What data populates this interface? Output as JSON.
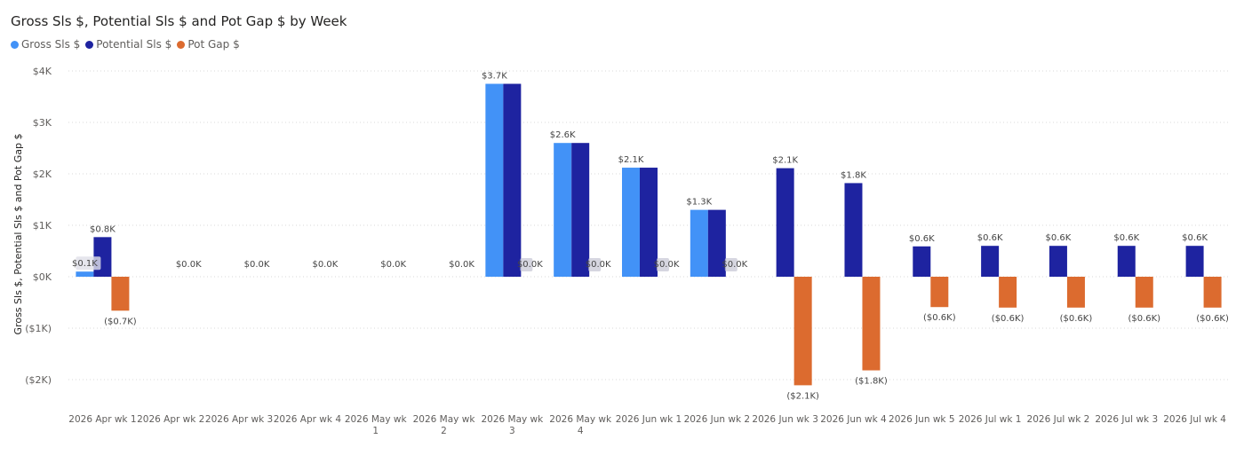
{
  "chart_data": {
    "type": "bar",
    "title": "Gross Sls $, Potential Sls $ and Pot Gap $ by Week",
    "xlabel": "",
    "ylabel": "Gross Sls $, Potential Sls $ and Pot Gap $",
    "ylim": [
      -2000,
      4000
    ],
    "y_ticks": [
      -2000,
      -1000,
      0,
      1000,
      2000,
      3000,
      4000
    ],
    "y_tick_labels": [
      "($2K)",
      "($1K)",
      "$0K",
      "$1K",
      "$2K",
      "$3K",
      "$4K"
    ],
    "grid": true,
    "legend_position": "top-left",
    "categories": [
      [
        "2026 Apr wk 1"
      ],
      [
        "2026 Apr wk 2"
      ],
      [
        "2026 Apr wk 3"
      ],
      [
        "2026 Apr wk 4"
      ],
      [
        "2026 May wk",
        "1"
      ],
      [
        "2026 May wk",
        "2"
      ],
      [
        "2026 May wk",
        "3"
      ],
      [
        "2026 May wk",
        "4"
      ],
      [
        "2026 Jun wk 1"
      ],
      [
        "2026 Jun wk 2"
      ],
      [
        "2026 Jun wk 3"
      ],
      [
        "2026 Jun wk 4"
      ],
      [
        "2026 Jun wk 5"
      ],
      [
        "2026 Jul wk 1"
      ],
      [
        "2026 Jul wk 2"
      ],
      [
        "2026 Jul wk 3"
      ],
      [
        "2026 Jul wk 4"
      ]
    ],
    "series": [
      {
        "name": "Gross Sls $",
        "color": "#4292f7",
        "values": [
          100,
          0,
          0,
          0,
          0,
          0,
          3750,
          2600,
          2120,
          1300,
          0,
          0,
          0,
          0,
          0,
          0,
          0
        ],
        "labels": [
          "$0.1K",
          "",
          "",
          "",
          "",
          "",
          "$3.7K",
          "$2.6K",
          "$2.1K",
          "$1.3K",
          "",
          "",
          "",
          "",
          "",
          "",
          ""
        ]
      },
      {
        "name": "Potential Sls $",
        "color": "#1e23a0",
        "values": [
          770,
          0,
          0,
          0,
          0,
          0,
          3750,
          2600,
          2120,
          1300,
          2110,
          1820,
          590,
          600,
          600,
          600,
          600
        ],
        "labels": [
          "$0.8K",
          "",
          "",
          "",
          "",
          "",
          "",
          "",
          "",
          "",
          "$2.1K",
          "$1.8K",
          "$0.6K",
          "$0.6K",
          "$0.6K",
          "$0.6K",
          "$0.6K"
        ]
      },
      {
        "name": "Pot Gap $",
        "color": "#dc6b2f",
        "values": [
          -660,
          0,
          0,
          0,
          0,
          0,
          0,
          0,
          0,
          0,
          -2110,
          -1820,
          -590,
          -600,
          -600,
          -600,
          -600
        ],
        "labels": [
          "($0.7K)",
          "$0.0K",
          "$0.0K",
          "$0.0K",
          "$0.0K",
          "$0.0K",
          "$0.0K",
          "$0.0K",
          "$0.0K",
          "$0.0K",
          "($2.1K)",
          "($1.8K)",
          "($0.6K)",
          "($0.6K)",
          "($0.6K)",
          "($0.6K)",
          "($0.6K)"
        ]
      }
    ]
  }
}
